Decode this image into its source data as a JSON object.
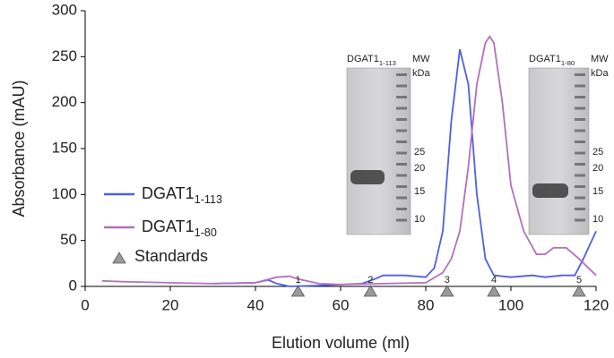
{
  "chart_data": {
    "type": "line",
    "xlabel": "Elution volume (ml)",
    "ylabel": "Absorbance (mAU)",
    "xlim": [
      0,
      120
    ],
    "xticks": [
      0,
      20,
      40,
      60,
      80,
      100,
      120
    ],
    "ylim": [
      0,
      300
    ],
    "yticks": [
      0,
      50,
      100,
      150,
      200,
      250,
      300
    ],
    "grid": false,
    "series": [
      {
        "name": "DGAT1",
        "subscript": "1-113",
        "color": "#4f5ee8",
        "x": [
          30,
          40,
          43,
          45,
          48,
          55,
          60,
          65,
          68,
          70,
          75,
          80,
          82,
          84,
          86,
          88,
          90,
          92,
          94,
          96,
          100,
          105,
          108,
          112,
          115,
          117,
          120
        ],
        "y": [
          3,
          4,
          7,
          3,
          0,
          1,
          2,
          3,
          8,
          12,
          12,
          10,
          20,
          60,
          180,
          258,
          220,
          100,
          30,
          12,
          10,
          12,
          10,
          12,
          12,
          30,
          60
        ]
      },
      {
        "name": "DGAT1",
        "subscript": "1-80",
        "color": "#b36fbf",
        "x": [
          4,
          10,
          20,
          30,
          40,
          45,
          48,
          50,
          55,
          60,
          70,
          80,
          84,
          86,
          88,
          90,
          92,
          94,
          95,
          96,
          98,
          100,
          103,
          106,
          108,
          110,
          113,
          116,
          120
        ],
        "y": [
          6,
          5,
          4,
          3,
          4,
          10,
          11,
          8,
          3,
          2,
          3,
          4,
          15,
          30,
          60,
          130,
          220,
          265,
          272,
          265,
          200,
          110,
          60,
          35,
          35,
          42,
          42,
          30,
          12
        ]
      }
    ],
    "standards": {
      "name": "Standards",
      "color": "#9a9a9a",
      "x": [
        50,
        67,
        85,
        96,
        116
      ],
      "labels": [
        "1",
        "2",
        "3",
        "4",
        "5"
      ]
    },
    "insets": [
      {
        "title": "DGAT1",
        "subscript": "1-113",
        "mw": "MW",
        "unit": "kDa",
        "markers": [
          25,
          20,
          15,
          10
        ]
      },
      {
        "title": "DGAT1",
        "subscript": "1-80",
        "mw": "MW",
        "unit": "kDa",
        "markers": [
          25,
          20,
          15,
          10
        ]
      }
    ]
  }
}
